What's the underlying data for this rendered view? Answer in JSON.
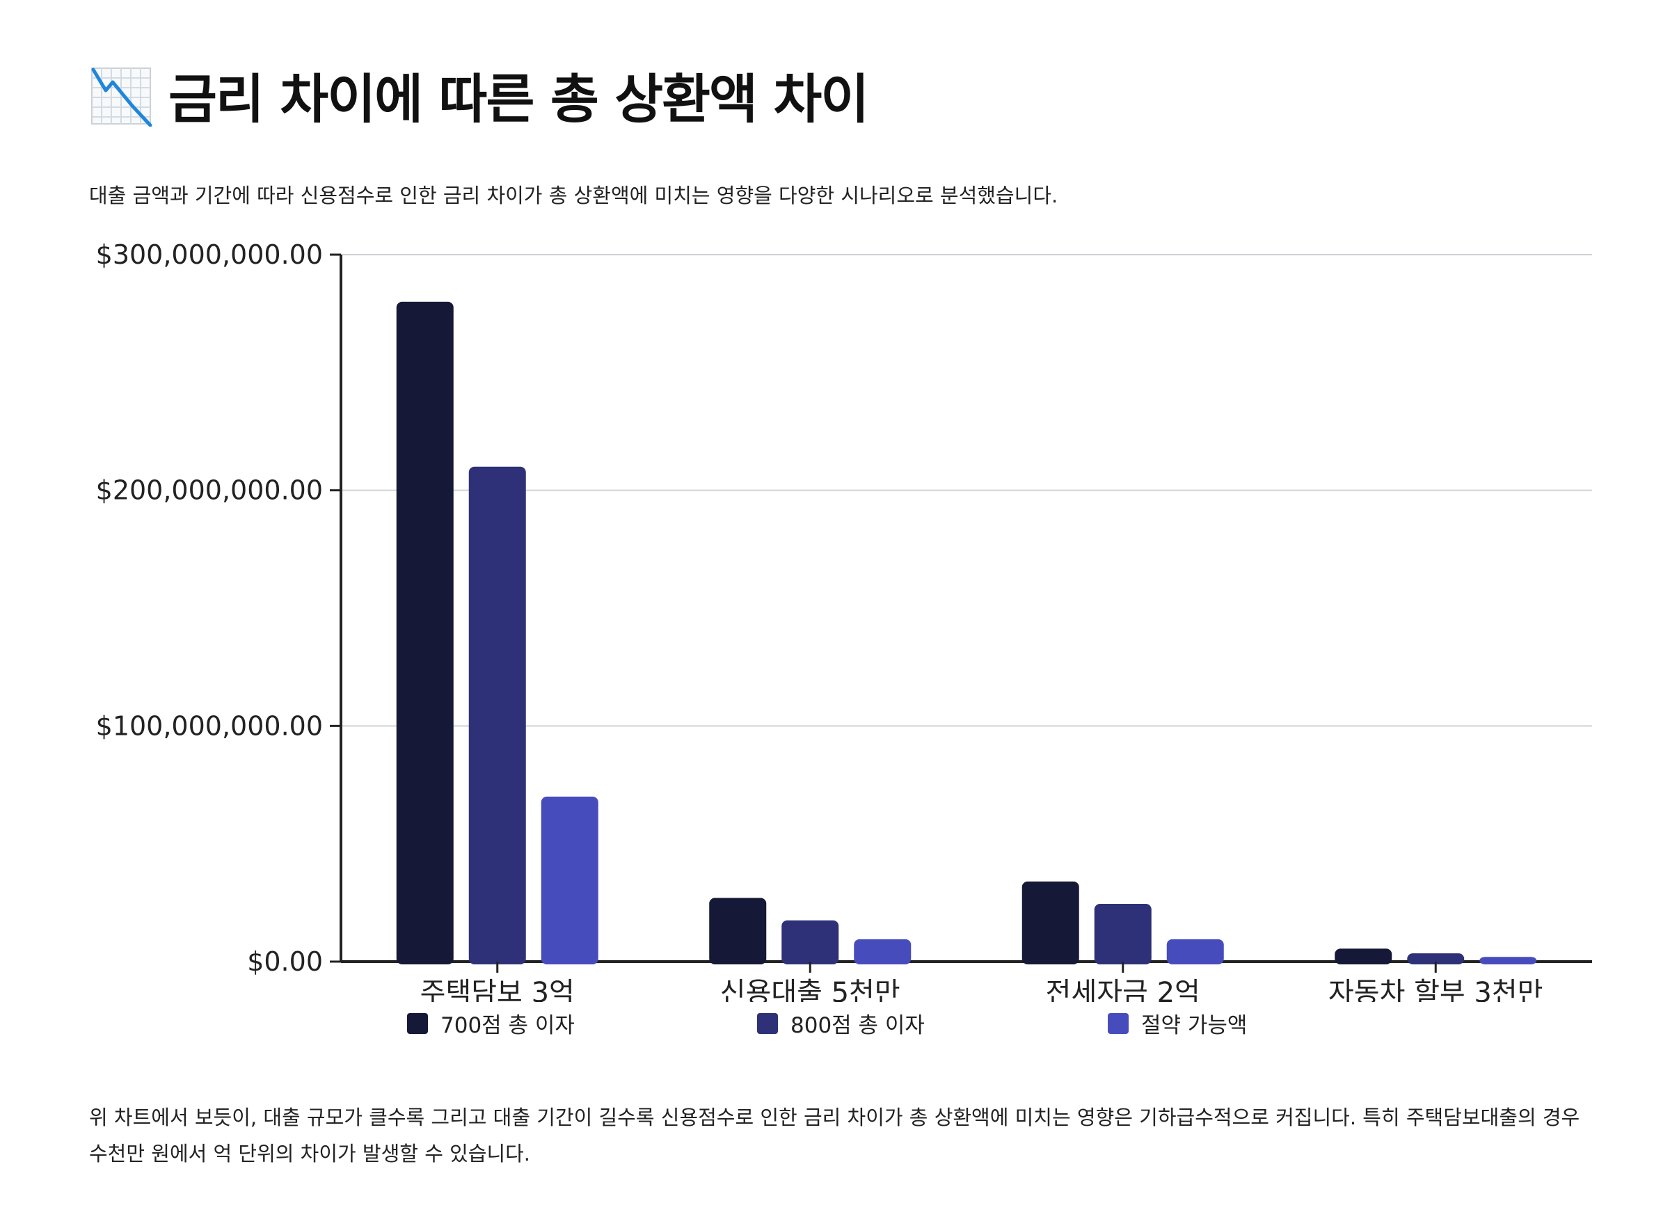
{
  "title": "금리 차이에 따른 총 상환액 차이",
  "title_icon": "chart-decreasing-icon",
  "subtitle": "대출 금액과 기간에 따라 신용점수로 인한 금리 차이가 총 상환액에 미치는 영향을 다양한 시나리오로 분석했습니다.",
  "caption": "위 차트에서 보듯이, 대출 규모가 클수록 그리고 대출 기간이 길수록 신용점수로 인한 금리 차이가 총 상환액에 미치는 영향은 기하급수적으로 커집니다. 특히 주택담보대출의 경우 수천만 원에서 억 단위의 차이가 발생할 수 있습니다.",
  "chart_data": {
    "type": "bar",
    "categories": [
      "주택담보 3억",
      "신용대출 5천만",
      "전세자금 2억",
      "자동차 할부 3천만"
    ],
    "series": [
      {
        "name": "700점 총 이자",
        "color": "#161838",
        "values": [
          280000000,
          27000000,
          34000000,
          5500000
        ]
      },
      {
        "name": "800점 총 이자",
        "color": "#2e3177",
        "values": [
          210000000,
          17500000,
          24500000,
          3500000
        ]
      },
      {
        "name": "절약 가능액",
        "color": "#474cbd",
        "values": [
          70000000,
          9500000,
          9500000,
          2000000
        ]
      }
    ],
    "ylim": [
      0,
      300000000
    ],
    "yticks": [
      "$0.00",
      "$100,000,000.00",
      "$200,000,000.00",
      "$300,000,000.00"
    ],
    "grid": true,
    "legend": "bottom"
  }
}
